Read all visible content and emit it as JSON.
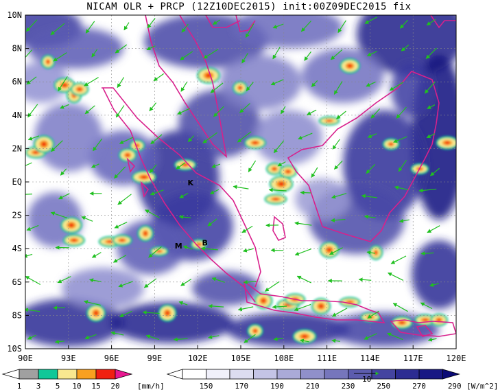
{
  "title": "NICAM OLR + PRCP (12Z10DEC2015) init:00Z09DEC2015 fix",
  "axes": {
    "lat_labels": [
      "10N",
      "8N",
      "6N",
      "4N",
      "2N",
      "EQ",
      "2S",
      "4S",
      "6S",
      "8S",
      "10S"
    ],
    "lon_labels": [
      "90E",
      "93E",
      "96E",
      "99E",
      "102E",
      "105E",
      "108E",
      "111E",
      "114E",
      "117E",
      "120E"
    ]
  },
  "stations": [
    {
      "label": "K",
      "lon": 101.3,
      "lat": -0.2
    },
    {
      "label": "M",
      "lon": 100.4,
      "lat": -4.0
    },
    {
      "label": "B",
      "lon": 102.3,
      "lat": -3.8
    }
  ],
  "precip_colorbar": {
    "ticks": [
      "1",
      "3",
      "5",
      "10",
      "15",
      "20"
    ],
    "unit": "[mm/h]",
    "colors": [
      "#a0a0a0",
      "#10c898",
      "#f8e890",
      "#f8a020",
      "#f02010",
      "#e81890"
    ]
  },
  "olr_colorbar": {
    "ticks": [
      "150",
      "170",
      "190",
      "210",
      "230",
      "250",
      "270",
      "290"
    ],
    "unit": "[W/m^2]",
    "colors": [
      "#ffffff",
      "#f0f0fa",
      "#dcdcf0",
      "#c4c4e6",
      "#aaaad8",
      "#9090ca",
      "#7676bc",
      "#5c5cae",
      "#4444a0",
      "#2c2c92",
      "#181884",
      "#0a0a76"
    ]
  },
  "vector_reference": {
    "value": "10"
  },
  "colors": {
    "coast": "#d8208c",
    "vector": "#20c020",
    "frame": "#000000"
  }
}
